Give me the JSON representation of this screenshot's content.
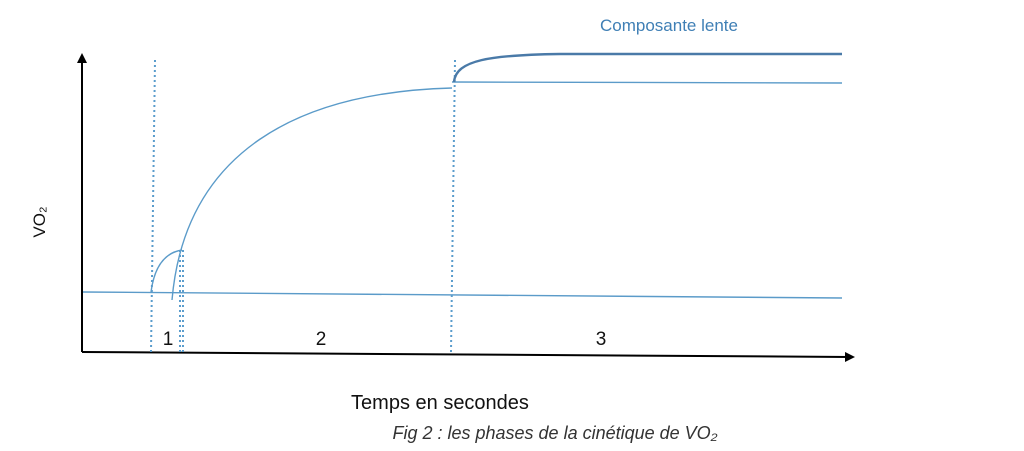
{
  "figure": {
    "y_axis_label": "VO₂",
    "x_axis_label": "Temps en secondes",
    "caption": "Fig 2 : les phases de la cinétique de VO₂",
    "slow_component_label": "Composante lente",
    "phases": [
      {
        "label": "1"
      },
      {
        "label": "2"
      },
      {
        "label": "3"
      }
    ]
  },
  "colors": {
    "axis": "#000000",
    "curve": "#5b9bc9",
    "slow_component": "#4a7aa8",
    "slow_component_label": "#3f7fb5",
    "divider": "#5a9ccc",
    "text": "#111111",
    "caption": "#333333"
  }
}
